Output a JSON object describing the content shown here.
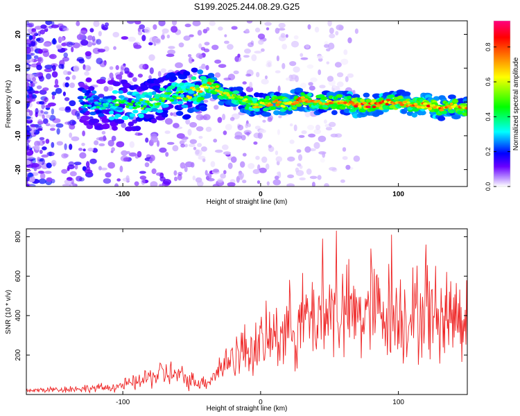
{
  "title": "S199.2025.244.08.29.G25",
  "chart_data": [
    {
      "type": "heatmap",
      "title": "S199.2025.244.08.29.G25",
      "xlabel": "Height of straight line (km)",
      "ylabel": "Frequency (Hz)",
      "xlim": [
        -170,
        150
      ],
      "ylim": [
        -25,
        24
      ],
      "xticks": [
        -100,
        0,
        100
      ],
      "xtick_labels": [
        "-100",
        "0",
        "100"
      ],
      "yticks": [
        -20,
        -10,
        0,
        10,
        20
      ],
      "ytick_labels": [
        "-20",
        "-10",
        "0",
        "10",
        "20"
      ],
      "colorbar": {
        "label": "Normalized spectral amplitude",
        "range": [
          0,
          0.95
        ],
        "ticks": [
          0.0,
          0.2,
          0.4,
          0.6,
          0.8
        ],
        "tick_labels": [
          "0.0",
          "0.2",
          "0.4",
          "0.6",
          "0.8"
        ],
        "colors": [
          "#ffffff",
          "#b080ff",
          "#6a00ff",
          "#0000ff",
          "#00ffff",
          "#00ff00",
          "#ffff00",
          "#ff8000",
          "#ff0000",
          "#ff0080"
        ]
      },
      "ridge": {
        "x": [
          -170,
          -150,
          -130,
          -110,
          -90,
          -70,
          -55,
          -45,
          -38,
          -32,
          -25,
          -15,
          -5,
          0,
          10,
          20,
          30,
          40,
          50,
          60,
          70,
          80,
          90,
          100,
          110,
          120,
          130,
          140,
          150
        ],
        "freq": [
          2,
          1,
          0,
          -1,
          -1,
          1,
          2,
          4,
          5,
          4,
          2,
          1,
          -1,
          -1,
          0,
          -1,
          1,
          0,
          0,
          0,
          -1,
          -1,
          0,
          0,
          -1,
          -1,
          -2,
          -1,
          -2
        ],
        "amplitude": [
          0.25,
          0.3,
          0.35,
          0.45,
          0.5,
          0.55,
          0.6,
          0.7,
          0.75,
          0.7,
          0.65,
          0.65,
          0.7,
          0.7,
          0.75,
          0.75,
          0.8,
          0.75,
          0.75,
          0.8,
          0.85,
          0.9,
          0.85,
          0.8,
          0.8,
          0.85,
          0.85,
          0.8,
          0.8
        ]
      }
    },
    {
      "type": "line",
      "xlabel": "Height of straight line (km)",
      "ylabel": "SNR (10 * v/v)",
      "xlim": [
        -170,
        150
      ],
      "ylim": [
        0,
        840
      ],
      "xticks": [
        -100,
        0,
        100
      ],
      "xtick_labels": [
        "-100",
        "0",
        "100"
      ],
      "yticks": [
        200,
        400,
        600,
        800
      ],
      "ytick_labels": [
        "200",
        "400",
        "600",
        "800"
      ],
      "series": [
        {
          "name": "SNR",
          "color": "#ee2222",
          "x": [
            -170,
            -150,
            -130,
            -110,
            -90,
            -80,
            -70,
            -60,
            -50,
            -40,
            -35,
            -30,
            -25,
            -20,
            -10,
            0,
            10,
            20,
            30,
            40,
            50,
            60,
            70,
            80,
            90,
            100,
            110,
            120,
            130,
            140,
            150
          ],
          "values": [
            20,
            25,
            30,
            35,
            60,
            90,
            110,
            95,
            70,
            60,
            90,
            130,
            160,
            200,
            230,
            250,
            300,
            340,
            370,
            400,
            420,
            410,
            400,
            420,
            430,
            410,
            400,
            420,
            400,
            410,
            400
          ],
          "peaks": [
            {
              "x": 55,
              "value": 830
            },
            {
              "x": 95,
              "value": 810
            },
            {
              "x": 45,
              "value": 790
            },
            {
              "x": 120,
              "value": 760
            },
            {
              "x": 80,
              "value": 740
            }
          ]
        }
      ]
    }
  ]
}
